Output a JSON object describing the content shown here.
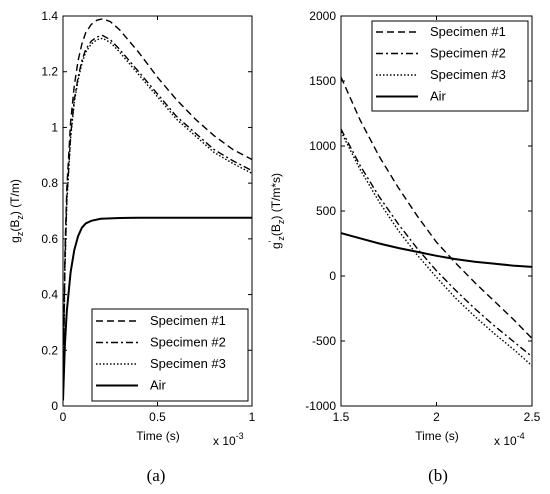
{
  "chart_data": [
    {
      "type": "line",
      "panel_label": "a",
      "xlabel": "Time (s)",
      "ylabel": "g_z(B_z) (T/m)",
      "ylabel_main": "g",
      "ylabel_sub": "z",
      "ylabel_mid": "(B",
      "ylabel_sub2": "z",
      "ylabel_tail": ") (T/m)",
      "x_scale_base": "x 10",
      "x_scale_exp": "-3",
      "xlim": [
        0,
        1
      ],
      "ylim": [
        0,
        1.4
      ],
      "xticks": [
        "0",
        "0.5",
        "1"
      ],
      "yticks": [
        "0",
        "0.2",
        "0.4",
        "0.6",
        "0.8",
        "1",
        "1.2",
        "1.4"
      ],
      "legend_position": "bottom-right",
      "series": [
        {
          "name": "Specimen #1",
          "style": "dashed",
          "x": [
            0,
            0.01,
            0.02,
            0.04,
            0.06,
            0.08,
            0.1,
            0.12,
            0.15,
            0.18,
            0.21,
            0.25,
            0.3,
            0.4,
            0.5,
            0.6,
            0.7,
            0.8,
            0.9,
            1.0
          ],
          "y": [
            0.02,
            0.55,
            0.78,
            1.02,
            1.15,
            1.24,
            1.3,
            1.34,
            1.37,
            1.385,
            1.39,
            1.38,
            1.35,
            1.27,
            1.18,
            1.1,
            1.03,
            0.97,
            0.92,
            0.885
          ]
        },
        {
          "name": "Specimen #2",
          "style": "dashdot",
          "x": [
            0,
            0.01,
            0.02,
            0.04,
            0.06,
            0.08,
            0.1,
            0.12,
            0.15,
            0.18,
            0.21,
            0.25,
            0.3,
            0.4,
            0.5,
            0.6,
            0.7,
            0.8,
            0.9,
            1.0
          ],
          "y": [
            0.02,
            0.5,
            0.74,
            0.97,
            1.1,
            1.18,
            1.24,
            1.28,
            1.31,
            1.325,
            1.33,
            1.315,
            1.28,
            1.2,
            1.12,
            1.04,
            0.98,
            0.92,
            0.88,
            0.845
          ]
        },
        {
          "name": "Specimen #3",
          "style": "dotted",
          "x": [
            0,
            0.01,
            0.02,
            0.04,
            0.06,
            0.08,
            0.1,
            0.12,
            0.15,
            0.18,
            0.21,
            0.25,
            0.3,
            0.4,
            0.5,
            0.6,
            0.7,
            0.8,
            0.9,
            1.0
          ],
          "y": [
            0.02,
            0.49,
            0.73,
            0.96,
            1.09,
            1.17,
            1.23,
            1.27,
            1.3,
            1.315,
            1.32,
            1.305,
            1.27,
            1.19,
            1.11,
            1.03,
            0.97,
            0.91,
            0.87,
            0.835
          ]
        },
        {
          "name": "Air",
          "style": "solid",
          "x": [
            0,
            0.01,
            0.02,
            0.04,
            0.06,
            0.08,
            0.1,
            0.12,
            0.15,
            0.2,
            0.3,
            0.4,
            0.5,
            0.6,
            0.8,
            1.0
          ],
          "y": [
            0.02,
            0.22,
            0.34,
            0.48,
            0.56,
            0.61,
            0.64,
            0.655,
            0.665,
            0.672,
            0.675,
            0.676,
            0.676,
            0.676,
            0.676,
            0.676
          ]
        }
      ]
    },
    {
      "type": "line",
      "panel_label": "b",
      "xlabel": "Time (s)",
      "ylabel": "g'_z(B_z) (T/m*s)",
      "ylabel_main": "g",
      "ylabel_prime": "'",
      "ylabel_sub": "z",
      "ylabel_mid": "(B",
      "ylabel_sub2": "z",
      "ylabel_tail": ") (T/m*s)",
      "x_scale_base": "x 10",
      "x_scale_exp": "-4",
      "xlim": [
        1.5,
        2.5
      ],
      "ylim": [
        -1000,
        2000
      ],
      "xticks": [
        "1.5",
        "2",
        "2.5"
      ],
      "yticks": [
        "-1000",
        "-500",
        "0",
        "500",
        "1000",
        "1500",
        "2000"
      ],
      "legend_position": "top-right",
      "series": [
        {
          "name": "Specimen #1",
          "style": "dashed",
          "x": [
            1.5,
            1.6,
            1.7,
            1.8,
            1.9,
            2.0,
            2.1,
            2.2,
            2.3,
            2.4,
            2.5
          ],
          "y": [
            1530,
            1200,
            920,
            680,
            460,
            260,
            100,
            -50,
            -190,
            -330,
            -480
          ]
        },
        {
          "name": "Specimen #2",
          "style": "dashdot",
          "x": [
            1.5,
            1.6,
            1.7,
            1.8,
            1.9,
            2.0,
            2.1,
            2.2,
            2.3,
            2.4,
            2.5
          ],
          "y": [
            1130,
            850,
            610,
            400,
            210,
            40,
            -110,
            -250,
            -380,
            -500,
            -620
          ]
        },
        {
          "name": "Specimen #3",
          "style": "dotted",
          "x": [
            1.5,
            1.6,
            1.7,
            1.8,
            1.9,
            2.0,
            2.1,
            2.2,
            2.3,
            2.4,
            2.5
          ],
          "y": [
            1110,
            820,
            570,
            350,
            160,
            -10,
            -170,
            -310,
            -440,
            -560,
            -690
          ]
        },
        {
          "name": "Air",
          "style": "solid",
          "x": [
            1.5,
            1.6,
            1.7,
            1.8,
            1.9,
            2.0,
            2.1,
            2.2,
            2.3,
            2.4,
            2.5
          ],
          "y": [
            330,
            290,
            250,
            215,
            185,
            155,
            130,
            110,
            95,
            80,
            70
          ]
        }
      ]
    }
  ],
  "captions": {
    "a": "(a)",
    "b": "(b)"
  }
}
